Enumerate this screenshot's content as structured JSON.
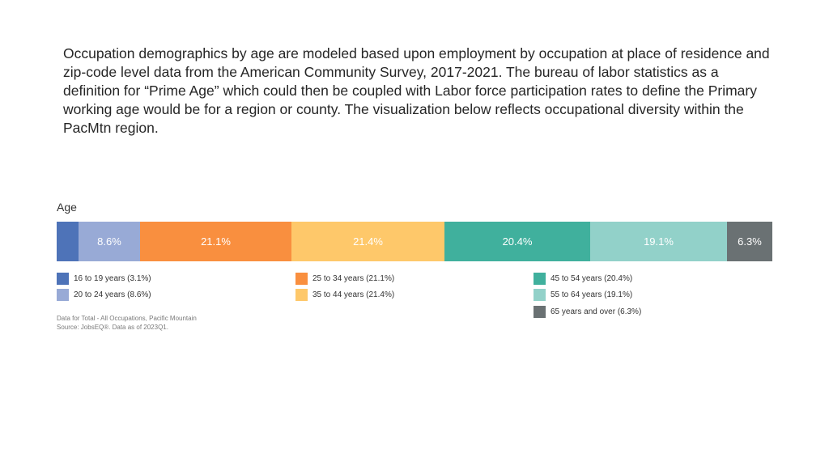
{
  "description": "Occupation demographics by age are modeled based upon employment by occupation at place of residence and zip-code level data from the American Community Survey, 2017-2021. The bureau of labor statistics as a definition for “Prime Age” which could then be coupled with Labor force participation rates to define the Primary working age would be for a region or county. The visualization below reflects occupational diversity within the PacMtn region.",
  "chart_data": {
    "type": "bar",
    "stacked": true,
    "orientation": "horizontal",
    "title": "Age",
    "xlim": [
      0,
      100
    ],
    "grid": false,
    "legend_position": "bottom",
    "series": [
      {
        "name": "16 to 19 years (3.1%)",
        "value": 3.1,
        "label": "",
        "color": "#4e73b8",
        "text_color": "#ffffff"
      },
      {
        "name": "20 to 24 years (8.6%)",
        "value": 8.6,
        "label": "8.6%",
        "color": "#98aad6",
        "text_color": "#ffffff"
      },
      {
        "name": "25 to 34 years (21.1%)",
        "value": 21.1,
        "label": "21.1%",
        "color": "#f98f3f",
        "text_color": "#ffffff"
      },
      {
        "name": "35 to 44 years (21.4%)",
        "value": 21.4,
        "label": "21.4%",
        "color": "#fec86a",
        "text_color": "#ffffff"
      },
      {
        "name": "45 to 54 years (20.4%)",
        "value": 20.4,
        "label": "20.4%",
        "color": "#40b09d",
        "text_color": "#ffffff"
      },
      {
        "name": "55 to 64 years (19.1%)",
        "value": 19.1,
        "label": "19.1%",
        "color": "#92d1c9",
        "text_color": "#ffffff"
      },
      {
        "name": "65 years and over (6.3%)",
        "value": 6.3,
        "label": "6.3%",
        "color": "#6a7173",
        "text_color": "#ffffff"
      }
    ],
    "footnote": [
      "Data for Total - All Occupations, Pacific Mountain",
      "Source: JobsEQ®. Data as of 2023Q1."
    ]
  }
}
